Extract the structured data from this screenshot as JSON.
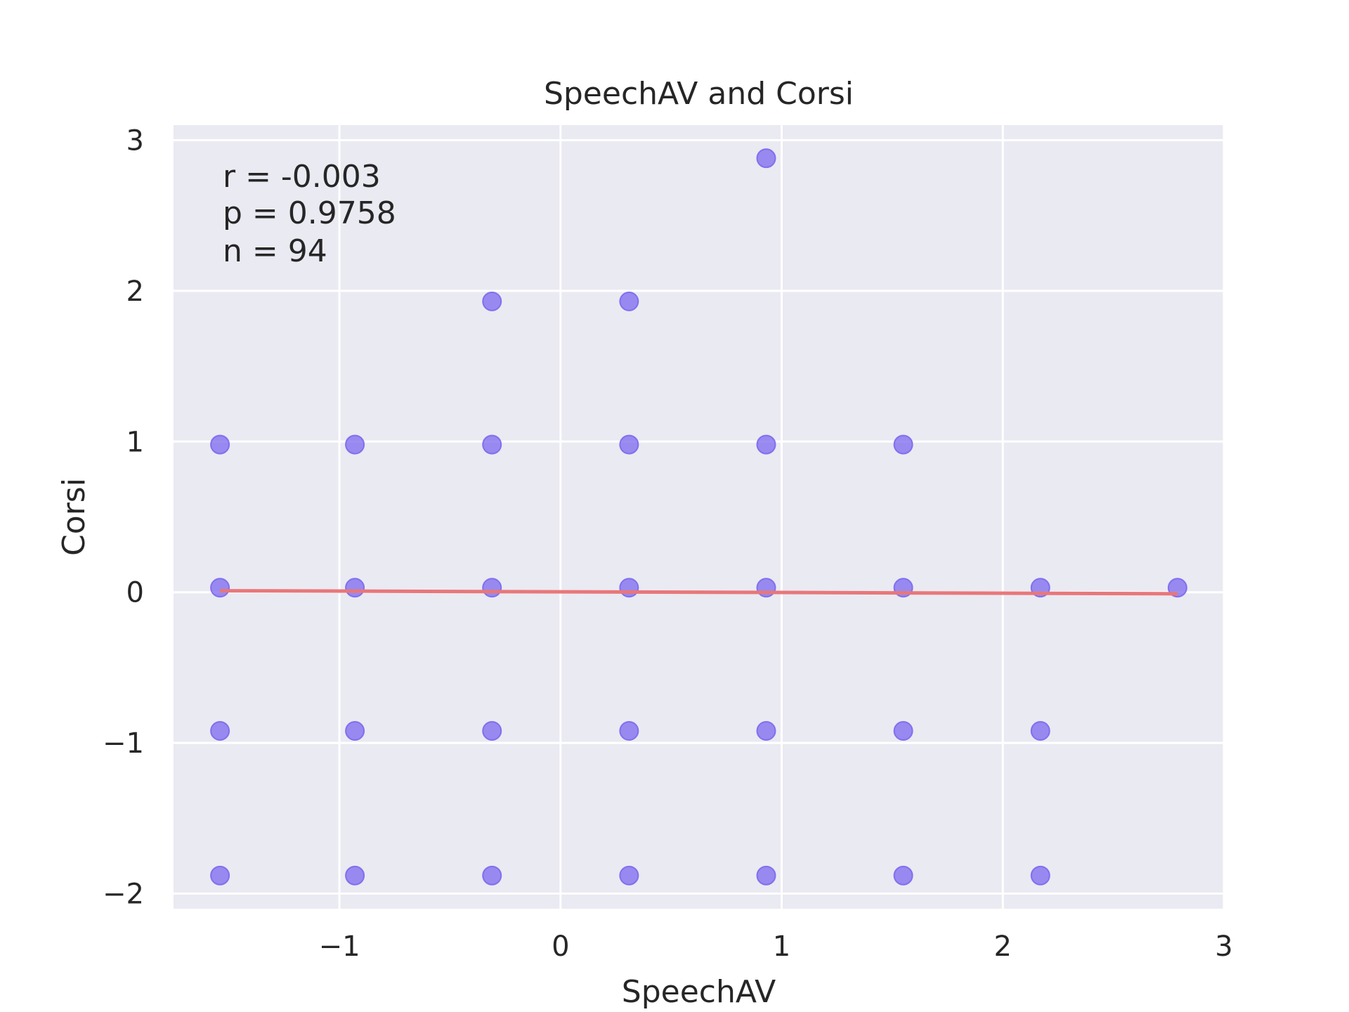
{
  "chart_data": {
    "type": "scatter",
    "title": "SpeechAV and Corsi",
    "xlabel": "SpeechAV",
    "ylabel": "Corsi",
    "xlim": [
      -1.75,
      3.0
    ],
    "ylim": [
      -2.1,
      3.1
    ],
    "xticks": [
      -1,
      0,
      1,
      2,
      3
    ],
    "yticks": [
      -2,
      -1,
      0,
      1,
      2,
      3
    ],
    "xtick_labels": [
      "−1",
      "0",
      "1",
      "2",
      "3"
    ],
    "ytick_labels": [
      "−2",
      "−1",
      "0",
      "1",
      "2",
      "3"
    ],
    "grid": true,
    "annotation": [
      "r = -0.003",
      "p = 0.9758",
      "n = 94"
    ],
    "point_color": "#7b68ee",
    "line_color": "#e8777a",
    "points": [
      {
        "x": -1.54,
        "y": 0.98
      },
      {
        "x": -1.54,
        "y": 0.03
      },
      {
        "x": -1.54,
        "y": -0.92
      },
      {
        "x": -1.54,
        "y": -1.88
      },
      {
        "x": -0.93,
        "y": 0.98
      },
      {
        "x": -0.93,
        "y": 0.03
      },
      {
        "x": -0.93,
        "y": -0.92
      },
      {
        "x": -0.93,
        "y": -1.88
      },
      {
        "x": -0.31,
        "y": 1.93
      },
      {
        "x": -0.31,
        "y": 0.98
      },
      {
        "x": -0.31,
        "y": 0.03
      },
      {
        "x": -0.31,
        "y": -0.92
      },
      {
        "x": -0.31,
        "y": -1.88
      },
      {
        "x": 0.31,
        "y": 1.93
      },
      {
        "x": 0.31,
        "y": 0.98
      },
      {
        "x": 0.31,
        "y": 0.03
      },
      {
        "x": 0.31,
        "y": -0.92
      },
      {
        "x": 0.31,
        "y": -1.88
      },
      {
        "x": 0.93,
        "y": 2.88
      },
      {
        "x": 0.93,
        "y": 0.98
      },
      {
        "x": 0.93,
        "y": 0.03
      },
      {
        "x": 0.93,
        "y": -0.92
      },
      {
        "x": 0.93,
        "y": -1.88
      },
      {
        "x": 1.55,
        "y": 0.98
      },
      {
        "x": 1.55,
        "y": 0.03
      },
      {
        "x": 1.55,
        "y": -0.92
      },
      {
        "x": 1.55,
        "y": -1.88
      },
      {
        "x": 2.17,
        "y": 0.03
      },
      {
        "x": 2.17,
        "y": -0.92
      },
      {
        "x": 2.17,
        "y": -1.88
      },
      {
        "x": 2.79,
        "y": 0.03
      }
    ],
    "fit_line": {
      "x": [
        -1.54,
        2.79
      ],
      "y": [
        0.01,
        -0.01
      ]
    }
  }
}
